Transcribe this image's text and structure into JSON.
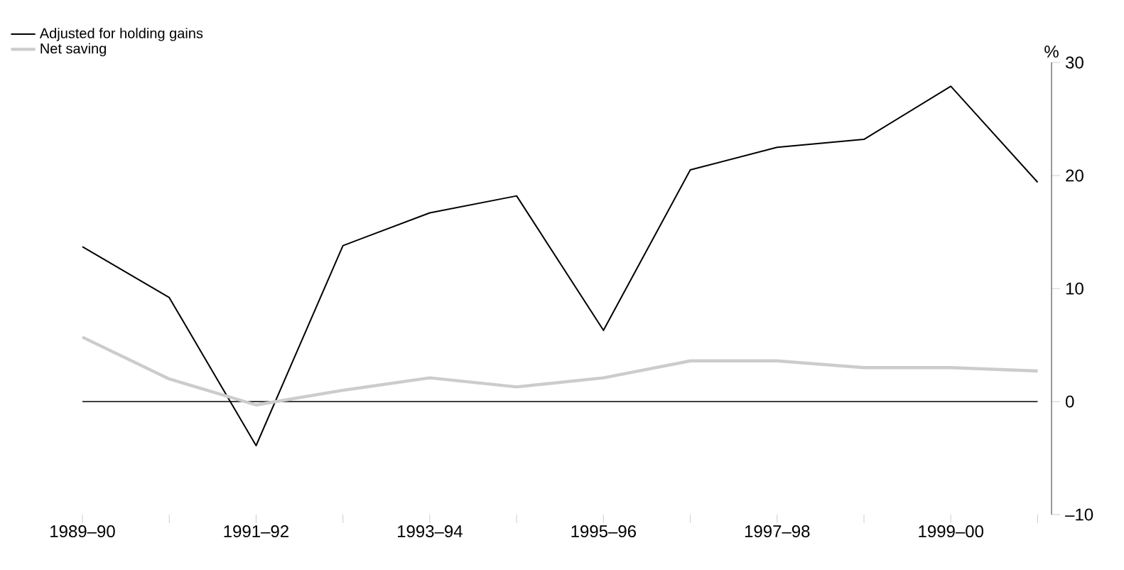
{
  "chart_data": {
    "type": "line",
    "ylabel": "%",
    "categories": [
      "1989–90",
      null,
      "1991–92",
      null,
      "1993–94",
      null,
      "1995–96",
      null,
      "1997–98",
      null,
      "1999–00",
      null
    ],
    "series": [
      {
        "name": "Adjusted for holding gains",
        "color": "#000000",
        "values": [
          13.7,
          9.2,
          -3.9,
          13.8,
          16.7,
          18.2,
          6.3,
          20.5,
          22.5,
          23.2,
          27.9,
          19.4
        ]
      },
      {
        "name": "Net saving",
        "color": "#cccccc",
        "values": [
          5.7,
          2.0,
          -0.3,
          1.0,
          2.1,
          1.3,
          2.1,
          3.6,
          3.6,
          3.0,
          3.0,
          2.7
        ]
      }
    ],
    "ylim": [
      -10,
      30
    ],
    "yticks": [
      {
        "value": -10,
        "label": "–10"
      },
      0,
      10,
      20,
      30
    ],
    "ref_lines": [
      {
        "axis": "y",
        "value": 0,
        "color": "#000000"
      }
    ],
    "grid": false,
    "legend": "top left",
    "marker": "none",
    "line_style": "solid"
  }
}
